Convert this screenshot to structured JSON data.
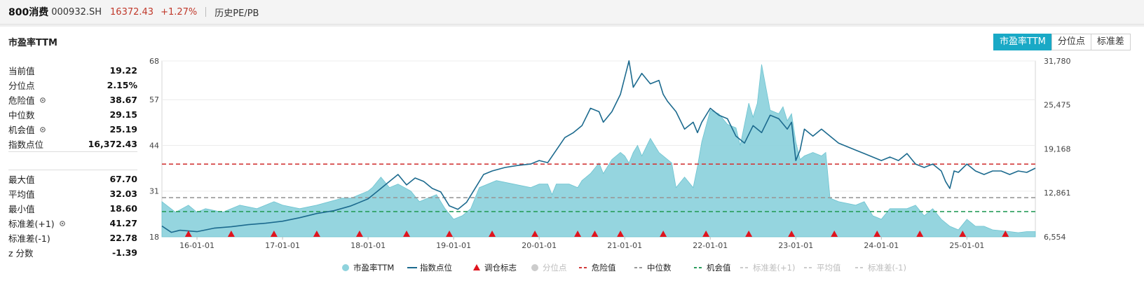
{
  "header": {
    "name": "800消费",
    "code": "000932.SH",
    "price": "16372.43",
    "change": "+1.27%",
    "link": "历史PE/PB"
  },
  "panel_title": "市盈率TTM",
  "tabs": [
    {
      "label": "市盈率TTM",
      "active": true
    },
    {
      "label": "分位点",
      "active": false
    },
    {
      "label": "标准差",
      "active": false
    }
  ],
  "stats_top": [
    {
      "label": "当前值",
      "value": "19.22",
      "gear": false
    },
    {
      "label": "分位点",
      "value": "2.15%",
      "gear": false
    },
    {
      "label": "危险值",
      "value": "38.67",
      "gear": true
    },
    {
      "label": "中位数",
      "value": "29.15",
      "gear": false
    },
    {
      "label": "机会值",
      "value": "25.19",
      "gear": true
    },
    {
      "label": "指数点位",
      "value": "16,372.43",
      "gear": false
    }
  ],
  "stats_bottom": [
    {
      "label": "最大值",
      "value": "67.70",
      "gear": false
    },
    {
      "label": "平均值",
      "value": "32.03",
      "gear": false
    },
    {
      "label": "最小值",
      "value": "18.60",
      "gear": false
    },
    {
      "label": "标准差(+1)",
      "value": "41.27",
      "gear": true
    },
    {
      "label": "标准差(-1)",
      "value": "22.78",
      "gear": false
    },
    {
      "label": "z 分数",
      "value": "-1.39",
      "gear": false
    }
  ],
  "colors": {
    "pe_fill": "#8fd3dd",
    "pe_edge": "#6cc3d0",
    "index_line": "#1c6a8e",
    "danger": "#d23a3a",
    "median": "#999999",
    "opportunity": "#2a9d5c",
    "marker": "#e0141e",
    "accent": "#19a9c6"
  },
  "chart_data": {
    "type": "area",
    "x_tick_labels": [
      "16-01-01",
      "17-01-01",
      "18-01-01",
      "19-01-01",
      "20-01-01",
      "21-01-01",
      "22-01-01",
      "23-01-01",
      "24-01-01",
      "25-01-01"
    ],
    "x_range": [
      2015.59,
      2025.8
    ],
    "left_axis": {
      "ticks": [
        18,
        31,
        44,
        57,
        68
      ],
      "range": [
        18,
        68
      ]
    },
    "right_axis": {
      "ticks": [
        "6,554",
        "12,861",
        "19,168",
        "25,475",
        "31,780"
      ],
      "range": [
        6554,
        31780
      ]
    },
    "reference_lines": {
      "danger": 38.67,
      "median": 29.15,
      "opportunity": 25.19
    },
    "pe_series": {
      "name": "市盈率TTM",
      "x": [
        2015.59,
        2015.75,
        2015.9,
        2016.0,
        2016.1,
        2016.3,
        2016.5,
        2016.7,
        2016.9,
        2017.0,
        2017.2,
        2017.4,
        2017.55,
        2017.7,
        2017.8,
        2017.9,
        2018.0,
        2018.05,
        2018.15,
        2018.25,
        2018.35,
        2018.5,
        2018.6,
        2018.7,
        2018.8,
        2018.9,
        2019.0,
        2019.1,
        2019.2,
        2019.3,
        2019.5,
        2019.7,
        2019.9,
        2020.0,
        2020.1,
        2020.15,
        2020.2,
        2020.35,
        2020.45,
        2020.5,
        2020.6,
        2020.7,
        2020.75,
        2020.85,
        2020.95,
        2021.0,
        2021.05,
        2021.1,
        2021.15,
        2021.2,
        2021.3,
        2021.4,
        2021.5,
        2021.55,
        2021.6,
        2021.7,
        2021.8,
        2021.85,
        2021.9,
        2022.0,
        2022.1,
        2022.2,
        2022.3,
        2022.35,
        2022.4,
        2022.45,
        2022.5,
        2022.55,
        2022.6,
        2022.7,
        2022.8,
        2022.85,
        2022.9,
        2022.95,
        2023.0,
        2023.05,
        2023.1,
        2023.2,
        2023.3,
        2023.35,
        2023.4,
        2023.5,
        2023.7,
        2023.8,
        2023.9,
        2024.0,
        2024.1,
        2024.3,
        2024.4,
        2024.5,
        2024.6,
        2024.7,
        2024.8,
        2024.9,
        2025.0,
        2025.1,
        2025.2,
        2025.3,
        2025.5,
        2025.6,
        2025.7,
        2025.8
      ],
      "y": [
        28,
        25,
        27,
        25,
        26,
        25,
        27,
        26,
        28,
        27,
        26,
        27,
        28,
        29,
        29,
        30,
        31,
        32,
        35,
        32,
        33,
        31,
        28,
        29,
        30,
        26,
        23,
        24,
        26,
        32,
        34,
        33,
        32,
        33,
        33,
        30,
        33,
        33,
        32,
        34,
        36,
        39,
        36,
        40,
        42,
        41,
        39,
        42,
        44,
        41,
        46,
        42,
        40,
        39,
        32,
        35,
        32,
        38,
        45,
        54,
        53,
        50,
        49,
        44,
        50,
        56,
        52,
        56,
        67,
        54,
        53,
        55,
        51,
        53,
        45,
        40,
        41,
        42,
        41,
        42,
        29,
        28,
        27,
        28,
        24,
        23,
        26,
        26,
        27,
        24,
        26,
        23,
        21,
        20,
        23,
        21,
        21,
        20,
        19.5,
        19.2,
        19.5,
        19.5
      ]
    },
    "index_series": {
      "name": "指数点位",
      "x": [
        2015.59,
        2015.7,
        2015.8,
        2015.9,
        2016.0,
        2016.2,
        2016.4,
        2016.6,
        2016.8,
        2017.0,
        2017.2,
        2017.4,
        2017.6,
        2017.8,
        2018.0,
        2018.1,
        2018.2,
        2018.35,
        2018.45,
        2018.55,
        2018.65,
        2018.75,
        2018.85,
        2018.95,
        2019.05,
        2019.15,
        2019.25,
        2019.35,
        2019.45,
        2019.6,
        2019.75,
        2019.9,
        2020.0,
        2020.1,
        2020.2,
        2020.3,
        2020.4,
        2020.5,
        2020.6,
        2020.7,
        2020.75,
        2020.85,
        2020.95,
        2021.05,
        2021.1,
        2021.2,
        2021.3,
        2021.4,
        2021.45,
        2021.5,
        2021.6,
        2021.7,
        2021.8,
        2021.85,
        2021.9,
        2022.0,
        2022.1,
        2022.2,
        2022.3,
        2022.4,
        2022.5,
        2022.6,
        2022.7,
        2022.8,
        2022.9,
        2022.95,
        2023.0,
        2023.05,
        2023.1,
        2023.2,
        2023.3,
        2023.4,
        2023.5,
        2023.6,
        2023.7,
        2023.8,
        2023.9,
        2024.0,
        2024.1,
        2024.2,
        2024.3,
        2024.4,
        2024.5,
        2024.6,
        2024.7,
        2024.75,
        2024.8,
        2024.85,
        2024.9,
        2025.0,
        2025.1,
        2025.2,
        2025.3,
        2025.4,
        2025.5,
        2025.6,
        2025.7,
        2025.8
      ],
      "y": [
        8100,
        7200,
        7500,
        7400,
        7300,
        7800,
        8000,
        8300,
        8500,
        8800,
        9300,
        9900,
        10300,
        11000,
        12000,
        13000,
        14000,
        15500,
        14000,
        15000,
        14500,
        13500,
        13000,
        11000,
        10500,
        11500,
        13500,
        15500,
        16000,
        16500,
        16800,
        17000,
        17500,
        17200,
        19000,
        20800,
        21500,
        22500,
        25000,
        24500,
        23000,
        24500,
        27000,
        31800,
        28000,
        30000,
        28500,
        29000,
        27000,
        26000,
        24500,
        22000,
        23000,
        21500,
        23000,
        25000,
        24000,
        23500,
        21000,
        20000,
        22500,
        21500,
        24000,
        23500,
        22000,
        23000,
        17500,
        19000,
        22000,
        21000,
        22000,
        21000,
        20000,
        19500,
        19000,
        18500,
        18000,
        17500,
        18000,
        17500,
        18500,
        17000,
        16500,
        17000,
        16000,
        14500,
        13500,
        16000,
        15800,
        17000,
        16000,
        15500,
        16000,
        16000,
        15500,
        16000,
        15800,
        16400
      ]
    },
    "rebalance_markers": {
      "name": "调仓标志",
      "x": [
        2015.9,
        2016.4,
        2016.9,
        2017.4,
        2017.9,
        2018.45,
        2018.95,
        2019.45,
        2019.95,
        2020.45,
        2020.65,
        2020.95,
        2021.45,
        2021.95,
        2022.45,
        2022.95,
        2023.45,
        2023.95,
        2024.45,
        2024.95,
        2025.45
      ]
    },
    "legend": [
      {
        "label": "市盈率TTM",
        "kind": "dot",
        "key": "pe_fill",
        "on": true
      },
      {
        "label": "指数点位",
        "kind": "line",
        "key": "index_line",
        "on": true
      },
      {
        "label": "调仓标志",
        "kind": "triangle",
        "key": "marker",
        "on": true
      },
      {
        "label": "分位点",
        "kind": "dot",
        "key": "median",
        "on": false
      },
      {
        "label": "危险值",
        "kind": "dash",
        "key": "danger",
        "on": true
      },
      {
        "label": "中位数",
        "kind": "dash",
        "key": "median",
        "on": true
      },
      {
        "label": "机会值",
        "kind": "dash",
        "key": "opportunity",
        "on": true
      },
      {
        "label": "标准差(+1)",
        "kind": "dash",
        "key": "median",
        "on": false
      },
      {
        "label": "平均值",
        "kind": "dash",
        "key": "median",
        "on": false
      },
      {
        "label": "标准差(-1)",
        "kind": "dash",
        "key": "median",
        "on": false
      }
    ],
    "grid": true
  }
}
